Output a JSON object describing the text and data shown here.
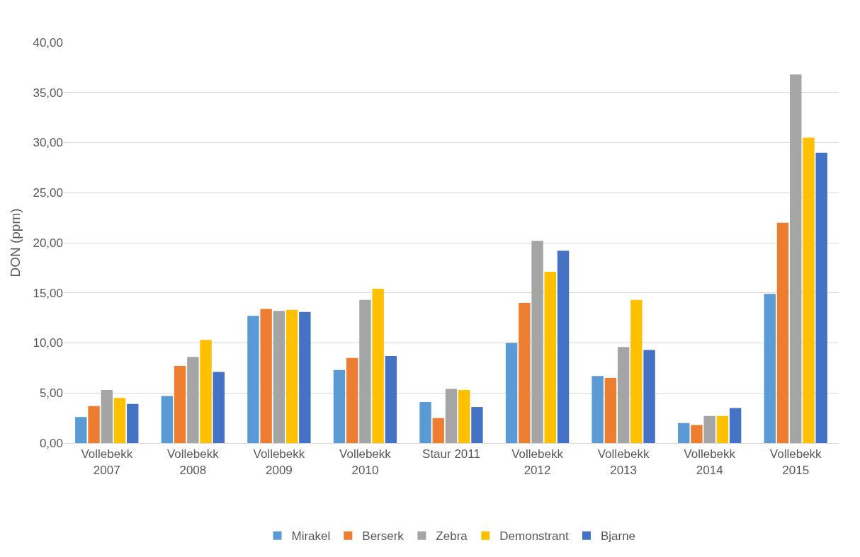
{
  "chart_data": {
    "type": "bar",
    "ylabel": "DON (ppm)",
    "categories": [
      "Vollebekk 2007",
      "Vollebekk 2008",
      "Vollebekk 2009",
      "Vollebekk 2010",
      "Staur 2011",
      "Vollebekk 2012",
      "Vollebekk 2013",
      "Vollebekk 2014",
      "Vollebekk 2015"
    ],
    "series": [
      {
        "name": "Mirakel",
        "color": "#5b9bd5",
        "values": [
          2.6,
          4.7,
          12.7,
          7.3,
          4.1,
          10.0,
          6.7,
          2.0,
          14.9
        ]
      },
      {
        "name": "Berserk",
        "color": "#ed7d31",
        "values": [
          3.7,
          7.7,
          13.4,
          8.5,
          2.5,
          14.0,
          6.5,
          1.8,
          22.0
        ]
      },
      {
        "name": "Zebra",
        "color": "#a5a5a5",
        "values": [
          5.3,
          8.6,
          13.2,
          14.3,
          5.4,
          20.2,
          9.6,
          2.7,
          36.8
        ]
      },
      {
        "name": "Demonstrant",
        "color": "#ffc000",
        "values": [
          4.5,
          10.3,
          13.3,
          15.4,
          5.3,
          17.1,
          14.3,
          2.7,
          30.5
        ]
      },
      {
        "name": "Bjarne",
        "color": "#4472c4",
        "values": [
          3.9,
          7.1,
          13.1,
          8.7,
          3.6,
          19.2,
          9.3,
          3.5,
          29.0
        ]
      }
    ],
    "ylim": [
      0,
      40
    ],
    "yticks": [
      {
        "value": 0,
        "label": "0,00"
      },
      {
        "value": 5,
        "label": "5,00"
      },
      {
        "value": 10,
        "label": "10,00"
      },
      {
        "value": 15,
        "label": "15,00"
      },
      {
        "value": 20,
        "label": "20,00"
      },
      {
        "value": 25,
        "label": "25,00"
      },
      {
        "value": 30,
        "label": "30,00"
      },
      {
        "value": 35,
        "label": "35,00"
      },
      {
        "value": 40,
        "label": "40,00"
      }
    ],
    "grid": "y",
    "legend": "bottom"
  }
}
